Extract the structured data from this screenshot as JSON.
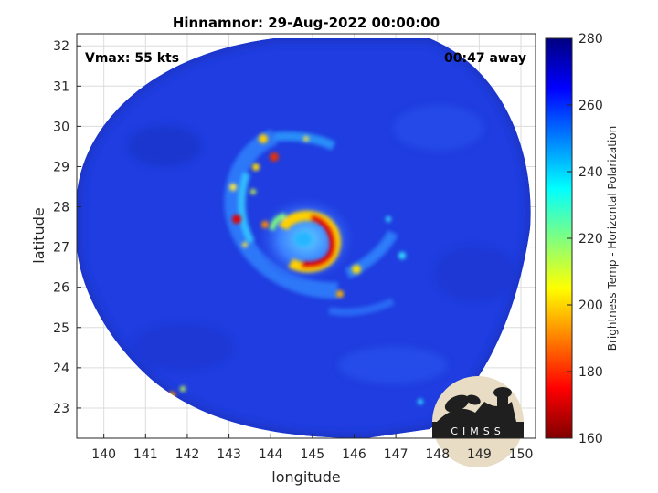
{
  "chart_data": {
    "type": "heatmap",
    "title": "Hinnamnor: 29-Aug-2022 00:00:00",
    "xlabel": "longitude",
    "ylabel": "latitude",
    "xlim": [
      139.35,
      150.35
    ],
    "ylim": [
      22.25,
      32.3
    ],
    "x_ticks": [
      140,
      141,
      142,
      143,
      144,
      145,
      146,
      147,
      148,
      149,
      150
    ],
    "y_ticks": [
      23,
      24,
      25,
      26,
      27,
      28,
      29,
      30,
      31,
      32
    ],
    "grid": true,
    "annotations": {
      "top_left": "Vmax: 55 kts",
      "top_right": "00:47 away"
    },
    "storm_center": {
      "lon": 145.1,
      "lat": 27.2
    },
    "colorbar": {
      "label": "Brightness Temp - Horizontal Polarization",
      "range": [
        160,
        280
      ],
      "ticks": [
        160,
        180,
        200,
        220,
        240,
        260,
        280
      ],
      "colormap": "jet",
      "position": "right"
    },
    "background_value": 263
  },
  "logo": {
    "text": "CIMSS"
  },
  "colors": {
    "grid": "#dcdcdc",
    "axis": "#262626",
    "background_field": "#1f3de0"
  }
}
